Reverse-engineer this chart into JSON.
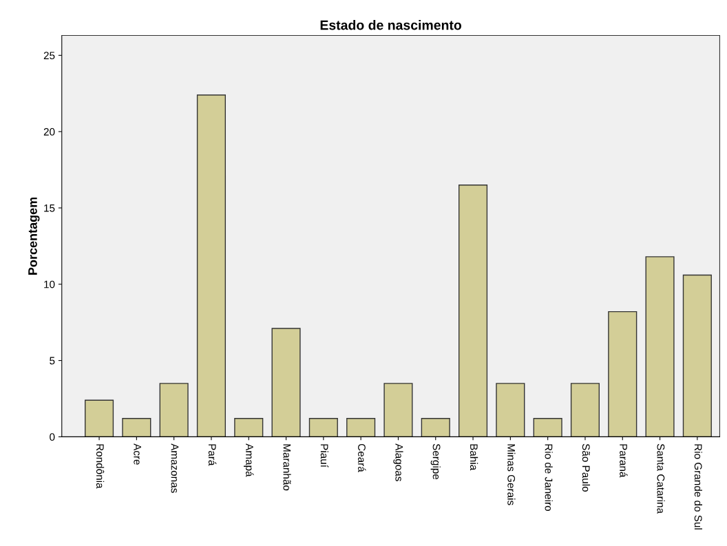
{
  "chart_data": {
    "type": "bar",
    "title": "Estado de nascimento",
    "ylabel": "Porcentagem",
    "categories": [
      "Rondônia",
      "Acre",
      "Amazonas",
      "Pará",
      "Amapá",
      "Maranhão",
      "Piauí",
      "Ceará",
      "Alagoas",
      "Sergipe",
      "Bahia",
      "Minas Gerais",
      "Rio de Janeiro",
      "São Paulo",
      "Paraná",
      "Santa Catarina",
      "Rio Grande do Sul"
    ],
    "values": [
      2.4,
      1.2,
      3.5,
      22.4,
      1.2,
      7.1,
      1.2,
      1.2,
      3.5,
      1.2,
      16.5,
      3.5,
      1.2,
      3.5,
      8.2,
      11.8,
      10.6
    ],
    "color": "#d3ce97",
    "ylim": [
      0,
      26.3
    ],
    "yticks": [
      0,
      5,
      10,
      15,
      20,
      25
    ],
    "grid": false,
    "legend": false
  }
}
